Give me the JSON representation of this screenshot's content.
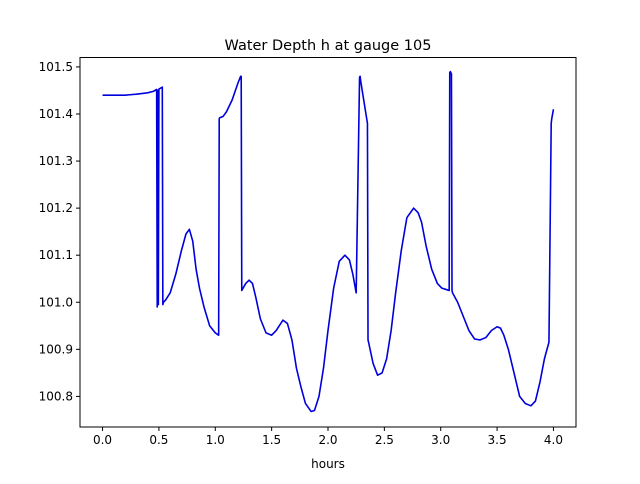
{
  "chart_data": {
    "type": "line",
    "title": "Water Depth h at gauge 105",
    "xlabel": "hours",
    "ylabel": "",
    "xlim": [
      -0.2,
      4.2
    ],
    "ylim": [
      100.735,
      101.52
    ],
    "x_ticks": [
      0.0,
      0.5,
      1.0,
      1.5,
      2.0,
      2.5,
      3.0,
      3.5,
      4.0
    ],
    "x_tick_labels": [
      "0.0",
      "0.5",
      "1.0",
      "1.5",
      "2.0",
      "2.5",
      "3.0",
      "3.5",
      "4.0"
    ],
    "y_ticks": [
      100.8,
      100.9,
      101.0,
      101.1,
      101.2,
      101.3,
      101.4,
      101.5
    ],
    "y_tick_labels": [
      "100.8",
      "100.9",
      "101.0",
      "101.1",
      "101.2",
      "101.3",
      "101.4",
      "101.5"
    ],
    "grid": false,
    "series": [
      {
        "color": "#0000dd",
        "x": [
          0.0,
          0.1,
          0.2,
          0.3,
          0.4,
          0.45,
          0.48,
          0.485,
          0.49,
          0.495,
          0.5,
          0.53,
          0.535,
          0.54,
          0.56,
          0.6,
          0.65,
          0.7,
          0.74,
          0.77,
          0.8,
          0.83,
          0.86,
          0.9,
          0.95,
          1.0,
          1.03,
          1.035,
          1.04,
          1.07,
          1.1,
          1.15,
          1.2,
          1.225,
          1.23,
          1.235,
          1.27,
          1.3,
          1.33,
          1.36,
          1.4,
          1.45,
          1.5,
          1.54,
          1.6,
          1.64,
          1.68,
          1.72,
          1.76,
          1.8,
          1.85,
          1.88,
          1.92,
          1.96,
          2.0,
          2.05,
          2.1,
          2.15,
          2.19,
          2.22,
          2.25,
          2.28,
          2.285,
          2.29,
          2.35,
          2.355,
          2.36,
          2.4,
          2.44,
          2.48,
          2.52,
          2.56,
          2.6,
          2.65,
          2.7,
          2.76,
          2.8,
          2.83,
          2.87,
          2.92,
          2.97,
          3.01,
          3.05,
          3.075,
          3.08,
          3.085,
          3.095,
          3.1,
          3.105,
          3.15,
          3.2,
          3.25,
          3.3,
          3.35,
          3.4,
          3.45,
          3.5,
          3.53,
          3.56,
          3.6,
          3.65,
          3.7,
          3.75,
          3.8,
          3.84,
          3.88,
          3.92,
          3.96,
          3.98,
          3.985,
          4.0
        ],
        "y": [
          101.44,
          101.44,
          101.44,
          101.442,
          101.445,
          101.448,
          101.452,
          100.99,
          101.45,
          100.995,
          101.453,
          101.457,
          100.995,
          101.0,
          101.005,
          101.02,
          101.06,
          101.11,
          101.145,
          101.155,
          101.13,
          101.07,
          101.03,
          100.99,
          100.95,
          100.935,
          100.93,
          101.39,
          101.392,
          101.395,
          101.405,
          101.43,
          101.465,
          101.48,
          101.48,
          101.025,
          101.04,
          101.047,
          101.04,
          101.01,
          100.965,
          100.935,
          100.93,
          100.94,
          100.962,
          100.955,
          100.92,
          100.86,
          100.82,
          100.785,
          100.768,
          100.77,
          100.8,
          100.86,
          100.94,
          101.03,
          101.087,
          101.1,
          101.09,
          101.06,
          101.02,
          101.478,
          101.48,
          101.47,
          101.38,
          100.92,
          100.915,
          100.87,
          100.845,
          100.85,
          100.88,
          100.94,
          101.02,
          101.11,
          101.18,
          101.2,
          101.19,
          101.17,
          101.12,
          101.07,
          101.04,
          101.03,
          101.027,
          101.025,
          101.488,
          101.49,
          101.485,
          101.025,
          101.02,
          101.0,
          100.97,
          100.94,
          100.922,
          100.92,
          100.925,
          100.94,
          100.948,
          100.945,
          100.93,
          100.9,
          100.85,
          100.8,
          100.785,
          100.78,
          100.79,
          100.83,
          100.88,
          100.915,
          101.38,
          101.39,
          101.41
        ]
      }
    ]
  }
}
